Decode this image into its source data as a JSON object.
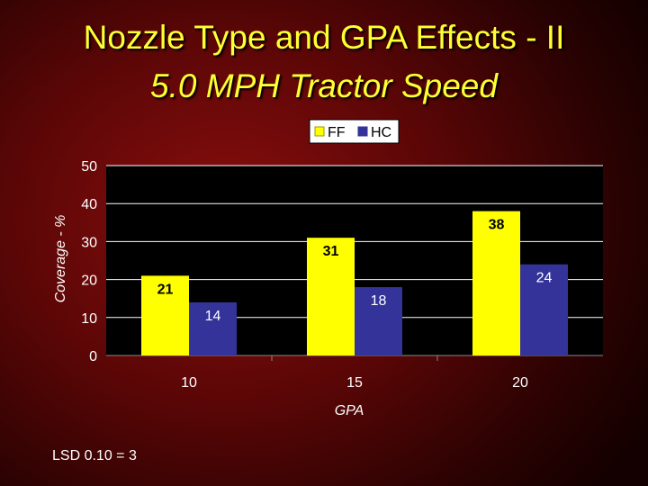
{
  "slide": {
    "title": "Nozzle Type and GPA Effects - II",
    "subtitle": "5.0 MPH Tractor Speed",
    "footnote": "LSD 0.10 = 3"
  },
  "chart_data": {
    "type": "bar",
    "categories": [
      "10",
      "15",
      "20"
    ],
    "series": [
      {
        "name": "FF",
        "values": [
          21,
          31,
          38
        ],
        "color": "#ffff00",
        "label_color": "#000000"
      },
      {
        "name": "HC",
        "values": [
          14,
          18,
          24
        ],
        "color": "#333399",
        "label_color": "#ffffff"
      }
    ],
    "yticks": [
      "0",
      "10",
      "20",
      "30",
      "40",
      "50"
    ],
    "ylim": [
      0,
      50
    ],
    "xlabel": "GPA",
    "ylabel": "Coverage - %",
    "legend": "top-center",
    "grid": true,
    "plot_background": "#000000",
    "axis_text_color": "#ffffff"
  }
}
